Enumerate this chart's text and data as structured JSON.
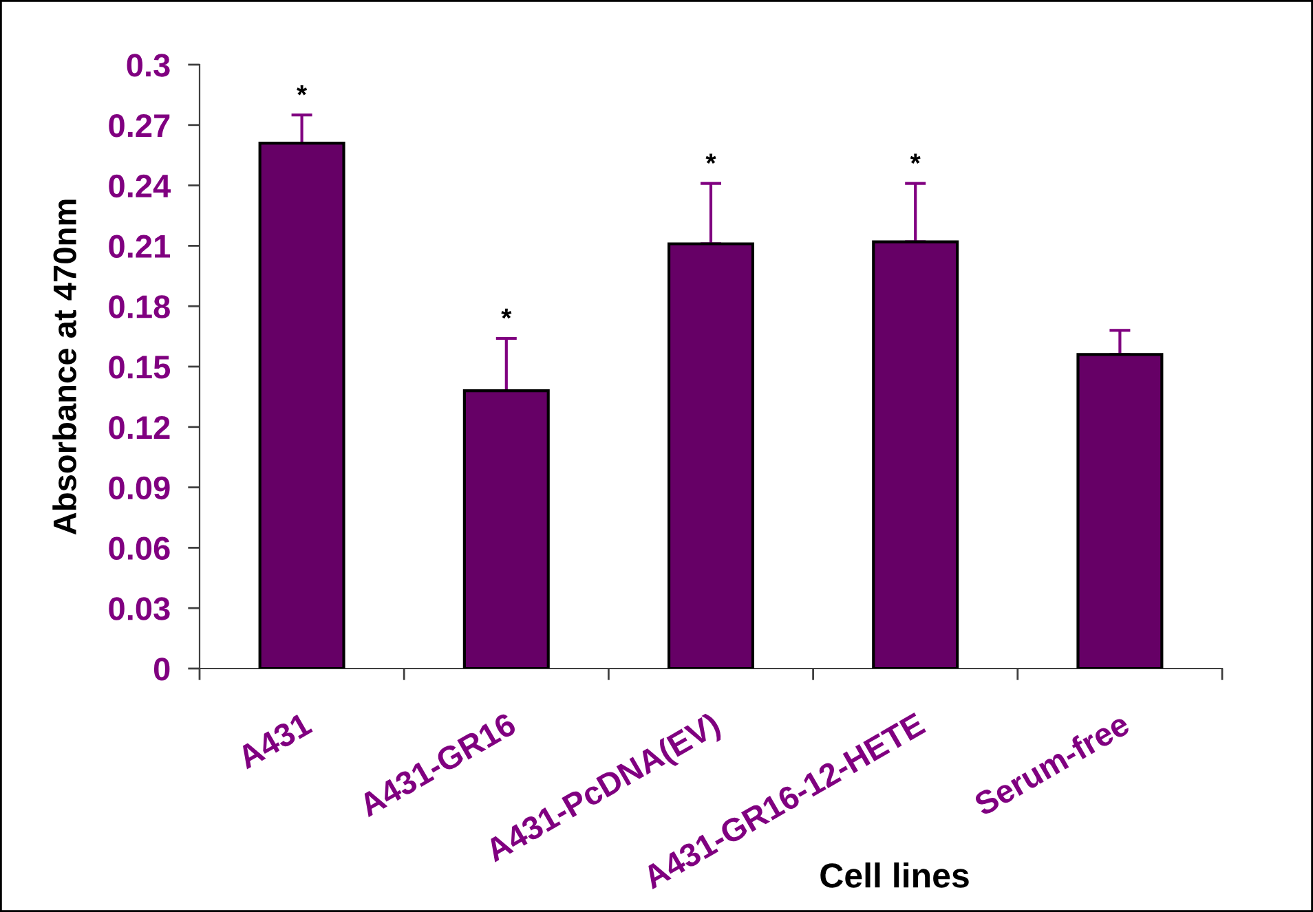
{
  "chart_data": {
    "type": "bar",
    "xlabel": "Cell lines",
    "ylabel": "Absorbance at 470nm",
    "categories": [
      "A431",
      "A431-GR16",
      "A431-PcDNA(EV)",
      "A431-GR16-12-HETE",
      "Serum-free"
    ],
    "values": [
      0.261,
      0.138,
      0.211,
      0.212,
      0.156
    ],
    "errors": [
      [
        0.261,
        0.275
      ],
      [
        0.138,
        0.164
      ],
      [
        0.211,
        0.241
      ],
      [
        0.212,
        0.241
      ],
      [
        0.156,
        0.168
      ]
    ],
    "color": "#660066",
    "ylim": [
      0,
      0.3
    ],
    "yticks": [
      0,
      0.03,
      0.06,
      0.09,
      0.12,
      0.15,
      0.18,
      0.21,
      0.24,
      0.27,
      0.3
    ],
    "annotations": [
      {
        "text": "*",
        "x": "A431",
        "y": 0.275
      },
      {
        "text": "*",
        "x": "A431-GR16",
        "y": 0.164
      },
      {
        "text": "*",
        "x": "A431-PcDNA(EV)",
        "y": 0.241
      },
      {
        "text": "*",
        "x": "A431-GR16-12-HETE",
        "y": 0.241
      }
    ]
  }
}
